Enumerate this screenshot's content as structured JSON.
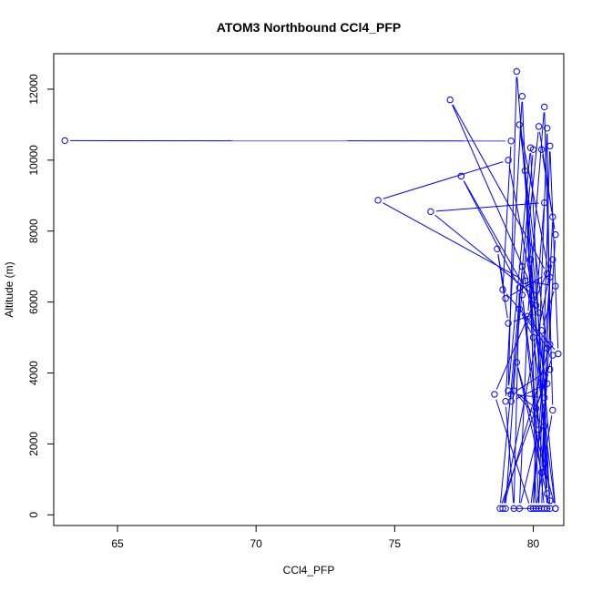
{
  "chart_data": {
    "type": "line",
    "title": "ATOM3 Northbound CCl4_PFP",
    "xlabel": "CCl4_PFP",
    "ylabel": "Altitude (m)",
    "xlim": [
      62.7,
      81.1
    ],
    "ylim": [
      -300,
      13000
    ],
    "x_ticks": [
      65,
      70,
      75,
      80
    ],
    "y_ticks": [
      0,
      2000,
      4000,
      6000,
      8000,
      10000,
      12000
    ],
    "series_color": "#0000ff",
    "grid": false,
    "series": [
      {
        "marker": "open-circle",
        "points": [
          [
            63.1,
            10550
          ],
          [
            79.2,
            10540
          ],
          [
            78.9,
            6350
          ],
          [
            80.9,
            4540
          ],
          [
            80.6,
            10400
          ],
          [
            80.2,
            180
          ],
          [
            79.6,
            11800
          ],
          [
            79.0,
            3200
          ],
          [
            79.3,
            180
          ],
          [
            79.5,
            6400
          ],
          [
            77.4,
            9550
          ],
          [
            80.2,
            5700
          ],
          [
            79.1,
            5400
          ],
          [
            78.7,
            7500
          ],
          [
            79.0,
            6100
          ],
          [
            80.5,
            6800
          ],
          [
            77.0,
            11700
          ],
          [
            79.9,
            6500
          ],
          [
            80.1,
            5900
          ],
          [
            80.4,
            8800
          ],
          [
            76.3,
            8550
          ],
          [
            80.0,
            6200
          ],
          [
            79.1,
            10000
          ],
          [
            74.4,
            8870
          ],
          [
            79.7,
            6600
          ],
          [
            80.8,
            6450
          ],
          [
            80.3,
            5200
          ],
          [
            80.6,
            180
          ],
          [
            79.4,
            4300
          ],
          [
            80.8,
            180
          ],
          [
            79.7,
            9700
          ],
          [
            80.2,
            2400
          ],
          [
            79.5,
            180
          ],
          [
            79.8,
            5600
          ],
          [
            80.4,
            11500
          ],
          [
            80.7,
            2950
          ],
          [
            80.1,
            180
          ],
          [
            79.9,
            7200
          ],
          [
            80.6,
            400
          ],
          [
            79.4,
            12500
          ],
          [
            79.1,
            3500
          ],
          [
            79.9,
            10350
          ],
          [
            80.5,
            180
          ],
          [
            79.0,
            180
          ],
          [
            79.6,
            7000
          ],
          [
            80.5,
            3700
          ],
          [
            79.2,
            3200
          ],
          [
            80.2,
            10950
          ],
          [
            80.8,
            7900
          ],
          [
            80.3,
            1200
          ],
          [
            80.7,
            8400
          ],
          [
            80.3,
            10300
          ],
          [
            80.0,
            10300
          ],
          [
            78.8,
            180
          ],
          [
            80.6,
            4100
          ],
          [
            79.2,
            3400
          ],
          [
            80.4,
            3300
          ],
          [
            79.9,
            180
          ],
          [
            78.6,
            3400
          ],
          [
            80.7,
            7200
          ],
          [
            78.9,
            180
          ],
          [
            80.6,
            4800
          ],
          [
            80.5,
            10900
          ],
          [
            80.0,
            180
          ],
          [
            80.6,
            6700
          ],
          [
            79.5,
            11000
          ],
          [
            80.5,
            4700
          ],
          [
            80.3,
            180
          ],
          [
            80.8,
            180
          ],
          [
            80.0,
            5000
          ],
          [
            79.5,
            5800
          ],
          [
            80.7,
            4500
          ],
          [
            80.1,
            3000
          ],
          [
            79.3,
            3500
          ],
          [
            80.4,
            2500
          ],
          [
            80.5,
            600
          ],
          [
            79.6,
            6200
          ],
          [
            80.4,
            180
          ]
        ]
      }
    ]
  }
}
